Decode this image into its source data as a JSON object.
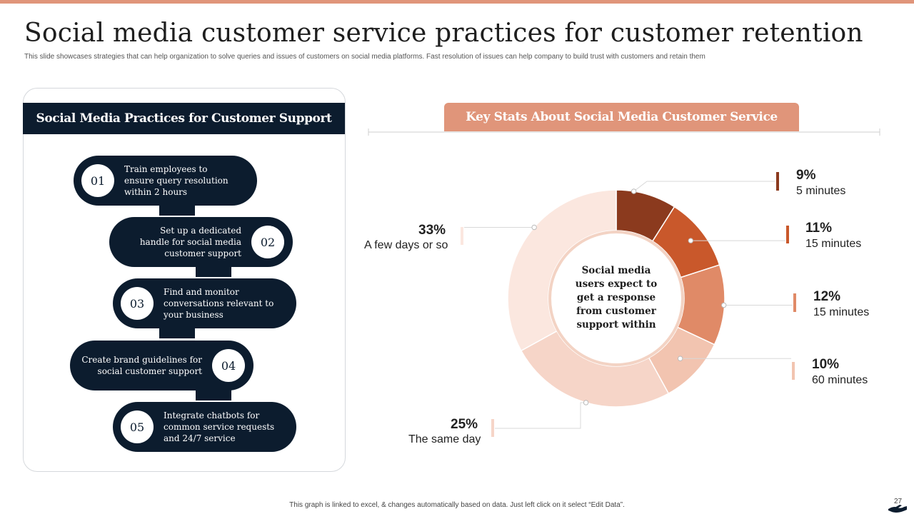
{
  "colors": {
    "navy": "#0c1c2e",
    "accent": "#e0957a",
    "slice_9": "#8b3a1e",
    "slice_11": "#c9582b",
    "slice_12": "#e08a67",
    "slice_10": "#f2c4b0",
    "slice_25": "#f6d5c8",
    "slice_33": "#fbe7df"
  },
  "page": {
    "title": "Social media customer service practices for customer retention",
    "subtitle": "This slide showcases strategies that can help organization to solve queries and issues of customers on social media platforms. Fast resolution of issues can help company to build trust with customers and retain them",
    "footer": "This graph is linked to excel, & changes automatically based on data. Just left click on it select “Edit Data”.",
    "page_number": "27",
    "footer_icon": "hand-icon"
  },
  "practices": {
    "header": "Social Media Practices for Customer Support",
    "items": [
      {
        "num": "01",
        "line1": "Train employees  to",
        "line2": "ensure query resolution",
        "line3": "within 2 hours"
      },
      {
        "num": "02",
        "line1": "Set up a dedicated",
        "line2": "handle for social media",
        "line3": "customer support"
      },
      {
        "num": "03",
        "line1": "Find and monitor",
        "line2": "conversations relevant to",
        "line3": "your business"
      },
      {
        "num": "04",
        "line1": "Create brand guidelines for",
        "line2": "social customer support",
        "line3": ""
      },
      {
        "num": "05",
        "line1": "Integrate chatbots for",
        "line2": "common service requests",
        "line3": "and 24/7 service"
      }
    ]
  },
  "stats": {
    "header": "Key Stats About Social Media Customer Service",
    "center_line1": "Social media",
    "center_line2": "users expect to",
    "center_line3": "get a response",
    "center_line4": "from customer",
    "center_line5": "support within"
  },
  "chart_data": {
    "type": "pie",
    "donut": true,
    "categories": [
      "5 minutes",
      "15 minutes",
      "15 minutes",
      "60 minutes",
      "The same day",
      "A few days or so"
    ],
    "values": [
      9,
      11,
      12,
      10,
      25,
      33
    ],
    "labels": [
      "9%",
      "11%",
      "12%",
      "10%",
      "25%",
      "33%"
    ],
    "title": "Key Stats About Social Media Customer Service"
  }
}
